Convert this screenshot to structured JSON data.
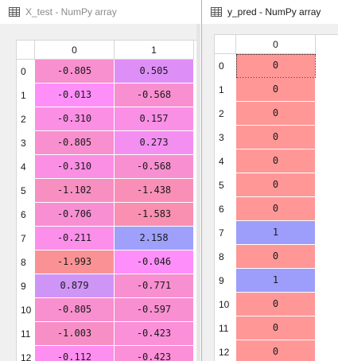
{
  "windows": {
    "x_test": {
      "title": "X_test - NumPy array",
      "columns": [
        "0",
        "1"
      ],
      "row_labels": [
        "0",
        "1",
        "2",
        "3",
        "4",
        "5",
        "6",
        "7",
        "8",
        "9",
        "10",
        "11",
        "12"
      ],
      "rows": [
        [
          "-0.805",
          "0.505"
        ],
        [
          "-0.013",
          "-0.568"
        ],
        [
          "-0.310",
          "0.157"
        ],
        [
          "-0.805",
          "0.273"
        ],
        [
          "-0.310",
          "-0.568"
        ],
        [
          "-1.102",
          "-1.438"
        ],
        [
          "-0.706",
          "-1.583"
        ],
        [
          "-0.211",
          "2.158"
        ],
        [
          "-1.993",
          "-0.046"
        ],
        [
          "0.879",
          "-0.771"
        ],
        [
          "-0.805",
          "-0.597"
        ],
        [
          "-1.003",
          "-0.423"
        ],
        [
          "-0.112",
          "-0.423"
        ]
      ],
      "cell_colors": [
        [
          "#f88fce",
          "#de8ff7"
        ],
        [
          "#fe8ff9",
          "#f88fd0"
        ],
        [
          "#fb8fe4",
          "#fa8fe6"
        ],
        [
          "#f88fce",
          "#f48ff2"
        ],
        [
          "#fb8fe4",
          "#f88fd0"
        ],
        [
          "#f78fc1",
          "#f98fb6"
        ],
        [
          "#f88fd3",
          "#f98fb1"
        ],
        [
          "#fc8fea",
          "#9ea0fb"
        ],
        [
          "#fa9295",
          "#fe8ffa"
        ],
        [
          "#cf95f6",
          "#f88fd0"
        ],
        [
          "#f88fce",
          "#f88fd1"
        ],
        [
          "#f78fc6",
          "#fb8fd8"
        ],
        [
          "#fd8ff0",
          "#fb8fd8"
        ]
      ]
    },
    "y_pred": {
      "title": "y_pred - NumPy array",
      "columns": [
        "0"
      ],
      "row_labels": [
        "0",
        "1",
        "2",
        "3",
        "4",
        "5",
        "6",
        "7",
        "8",
        "9",
        "10",
        "11",
        "12"
      ],
      "values": [
        "0",
        "0",
        "0",
        "0",
        "0",
        "0",
        "0",
        "1",
        "0",
        "1",
        "0",
        "0",
        "0"
      ],
      "colors": {
        "zero": "#ff9797",
        "one": "#9d9dfb"
      }
    }
  }
}
